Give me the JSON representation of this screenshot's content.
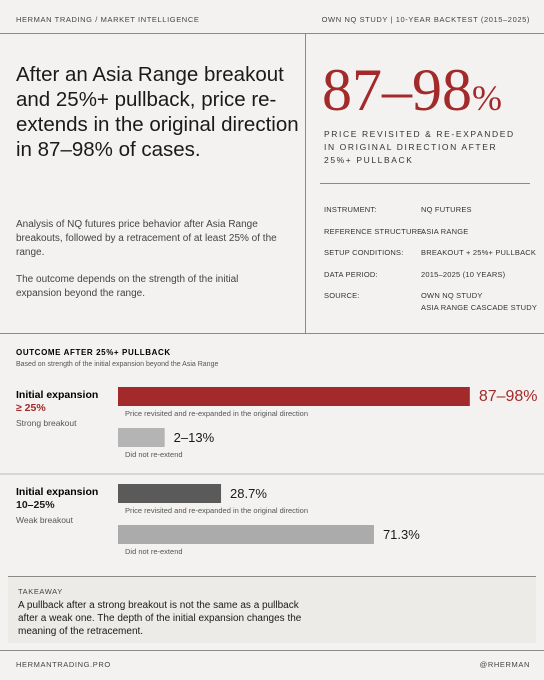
{
  "header": {
    "left": "HERMAN TRADING  /  MARKET INTELLIGENCE",
    "right": "OWN NQ STUDY  |  10-YEAR BACKTEST (2015–2025)"
  },
  "hero": {
    "headline": "After an Asia Range breakout and 25%+ pullback, price re-extends in the original direction in 87–98% of cases.",
    "paragraphs": [
      "Analysis of NQ futures price behavior after Asia Range breakouts, followed by a retracement of at least 25% of the range.",
      "The outcome depends on the strength of the initial expansion beyond the range."
    ],
    "stat": "87–98",
    "stat_unit": "%",
    "stat_caption": "PRICE REVISITED & RE-EXPANDED IN ORIGINAL DIRECTION AFTER 25%+ PULLBACK"
  },
  "details": {
    "rows": [
      [
        "INSTRUMENT:",
        "NQ FUTURES"
      ],
      [
        "REFERENCE STRUCTURE:",
        "ASIA RANGE"
      ],
      [
        "SETUP CONDITIONS:",
        "BREAKOUT + 25%+ PULLBACK"
      ],
      [
        "DATA PERIOD:",
        "2015–2025 (10 YEARS)"
      ],
      [
        "SOURCE:",
        "OWN NQ STUDY",
        "ASIA RANGE CASCADE STUDY"
      ]
    ]
  },
  "chart_data": {
    "type": "bar",
    "title": "OUTCOME AFTER 25%+ PULLBACK",
    "subtitle": "Based on strength of the initial expansion beyond the Asia Range",
    "xlim": [
      0,
      100
    ],
    "groups": [
      {
        "label": [
          "Initial expansion",
          "≥ 25%"
        ],
        "label_color": "#a32a2a",
        "sublabel": "Strong breakout",
        "bars": [
          {
            "values": [
              87,
              98
            ],
            "value_label": "87–98%",
            "caption": "Price revisited and re-expanded in the original direction",
            "color": "#a32a2a"
          },
          {
            "values": [
              2,
              13
            ],
            "value_label": "2–13%",
            "caption": "Did not re-extend",
            "color": "#b4b4b4"
          }
        ]
      },
      {
        "label": [
          "Initial expansion",
          "10–25%"
        ],
        "label_color": "#1a1a1a",
        "sublabel": "Weak breakout",
        "bars": [
          {
            "values": [
              28.7
            ],
            "value_label": "28.7%",
            "caption": "Price revisited and re-expanded in the original direction",
            "color": "#5a5a5a"
          },
          {
            "values": [
              71.3
            ],
            "value_label": "71.3%",
            "caption": "Did not re-extend",
            "color": "#ababab"
          }
        ]
      }
    ]
  },
  "takeaway": {
    "title": "TAKEAWAY",
    "text": "A pullback after a strong breakout is not the same as a pullback after a weak one. The depth of the initial expansion changes the meaning of the retracement."
  },
  "footer": {
    "left": "HERMANTRADING.PRO",
    "right": "@RHERMAN"
  }
}
